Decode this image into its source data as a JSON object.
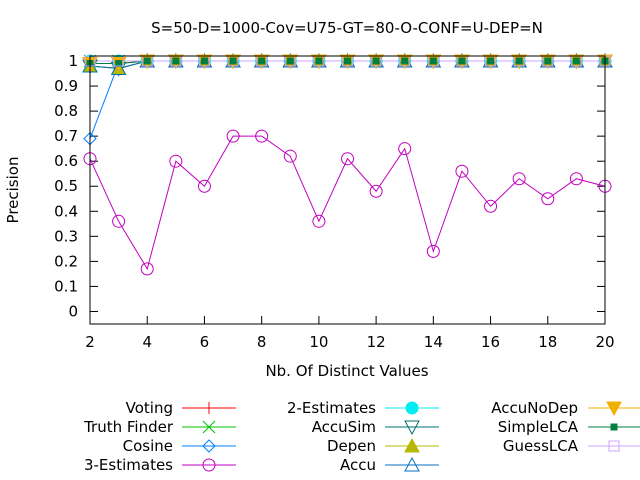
{
  "chart_data": {
    "type": "line",
    "title": "S=50-D=1000-Cov=U75-GT=80-O-CONF=U-DEP=N",
    "xlabel": "Nb. Of Distinct Values",
    "ylabel": "Precision",
    "xlim": [
      2,
      20
    ],
    "ylim": [
      -0.05,
      1.02
    ],
    "x_ticks": [
      2,
      4,
      6,
      8,
      10,
      12,
      14,
      16,
      18,
      20
    ],
    "y_ticks": [
      0,
      0.1,
      0.2,
      0.3,
      0.4,
      0.5,
      0.6,
      0.7,
      0.8,
      0.9,
      1
    ],
    "grid": false,
    "legend_position": "bottom",
    "x": [
      2,
      3,
      4,
      5,
      6,
      7,
      8,
      9,
      10,
      11,
      12,
      13,
      14,
      15,
      16,
      17,
      18,
      19,
      20
    ],
    "series": [
      {
        "name": "Voting",
        "color": "#ff0000",
        "marker": "plus",
        "values": [
          1,
          1,
          1,
          1,
          1,
          1,
          1,
          1,
          1,
          1,
          1,
          1,
          1,
          1,
          1,
          1,
          1,
          1,
          1
        ]
      },
      {
        "name": "Truth Finder",
        "color": "#00c000",
        "marker": "cross",
        "values": [
          1,
          1,
          1,
          1,
          1,
          1,
          1,
          1,
          1,
          1,
          1,
          1,
          1,
          1,
          1,
          1,
          1,
          1,
          1
        ]
      },
      {
        "name": "Cosine",
        "color": "#0080ff",
        "marker": "diamond",
        "values": [
          0.69,
          0.99,
          1,
          1,
          1,
          1,
          1,
          1,
          1,
          1,
          1,
          1,
          1,
          1,
          1,
          1,
          1,
          1,
          1
        ]
      },
      {
        "name": "3-Estimates",
        "color": "#c000c0",
        "marker": "circle",
        "values": [
          0.61,
          0.36,
          0.17,
          0.6,
          0.5,
          0.7,
          0.7,
          0.62,
          0.36,
          0.61,
          0.48,
          0.65,
          0.24,
          0.56,
          0.42,
          0.53,
          0.45,
          0.53,
          0.5
        ]
      },
      {
        "name": "2-Estimates",
        "color": "#00eeee",
        "marker": "filled-circle",
        "values": [
          1,
          1,
          1,
          1,
          1,
          1,
          1,
          1,
          1,
          1,
          1,
          1,
          1,
          1,
          1,
          1,
          1,
          1,
          1
        ]
      },
      {
        "name": "AccuSim",
        "color": "#007070",
        "marker": "triangle-down",
        "values": [
          0.98,
          0.97,
          1,
          1,
          1,
          1,
          1,
          1,
          1,
          1,
          1,
          1,
          1,
          1,
          1,
          1,
          1,
          1,
          1
        ]
      },
      {
        "name": "Depen",
        "color": "#b8b800",
        "marker": "filled-triangle-up",
        "values": [
          0.98,
          0.97,
          1,
          1,
          1,
          1,
          1,
          1,
          1,
          1,
          1,
          1,
          1,
          1,
          1,
          1,
          1,
          1,
          1
        ]
      },
      {
        "name": "Accu",
        "color": "#0070c0",
        "marker": "triangle-up",
        "values": [
          0.98,
          0.97,
          1,
          1,
          1,
          1,
          1,
          1,
          1,
          1,
          1,
          1,
          1,
          1,
          1,
          1,
          1,
          1,
          1
        ]
      },
      {
        "name": "AccuNoDep",
        "color": "#f0b000",
        "marker": "filled-triangle-down",
        "values": [
          0.99,
          0.99,
          1,
          1,
          1,
          1,
          1,
          1,
          1,
          1,
          1,
          1,
          1,
          1,
          1,
          1,
          1,
          1,
          1
        ]
      },
      {
        "name": "SimpleLCA",
        "color": "#008040",
        "marker": "filled-square",
        "values": [
          0.99,
          0.99,
          1,
          1,
          1,
          1,
          1,
          1,
          1,
          1,
          1,
          1,
          1,
          1,
          1,
          1,
          1,
          1,
          1
        ]
      },
      {
        "name": "GuessLCA",
        "color": "#d0a0ff",
        "marker": "square",
        "values": [
          1,
          1,
          1,
          1,
          1,
          1,
          1,
          1,
          1,
          1,
          1,
          1,
          1,
          1,
          1,
          1,
          1,
          1,
          1
        ]
      }
    ]
  }
}
